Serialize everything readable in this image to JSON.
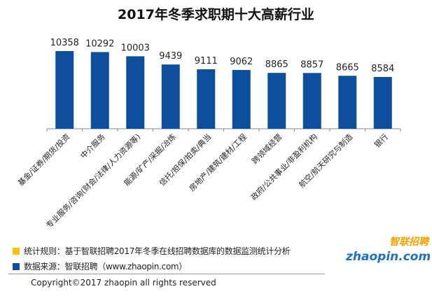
{
  "chart_data": {
    "type": "bar",
    "title": "2017年冬季求职期十大高薪行业",
    "categories": [
      "基金/证券/期货/投资",
      "中介服务",
      "专业服务/咨询(财会/法律/人力资源等)",
      "能源/矿产/采掘/冶炼",
      "信托/担保/拍卖/典当",
      "房地产/建筑/建材/工程",
      "跨领域经营",
      "政府/公共事业/非盈利机构",
      "航空/航天研究与制造",
      "银行"
    ],
    "values": [
      10358,
      10292,
      10003,
      9439,
      9111,
      9062,
      8865,
      8857,
      8665,
      8584
    ],
    "bar_color": "#0d4f9c",
    "grid": false
  },
  "legend": {
    "items": [
      {
        "color": "#f5c400",
        "text": "统计规则：基于智联招聘2017年冬季在线招聘数据库的数据监测统计分析"
      },
      {
        "color": "#0d4f9c",
        "text": "数据来源：智联招聘（www.zhaopin.com）"
      }
    ]
  },
  "logo": {
    "cn": "智联招聘",
    "en": "zhaopin.com"
  },
  "copyright": "Copyright©2017 zhaopin all rights reserved"
}
